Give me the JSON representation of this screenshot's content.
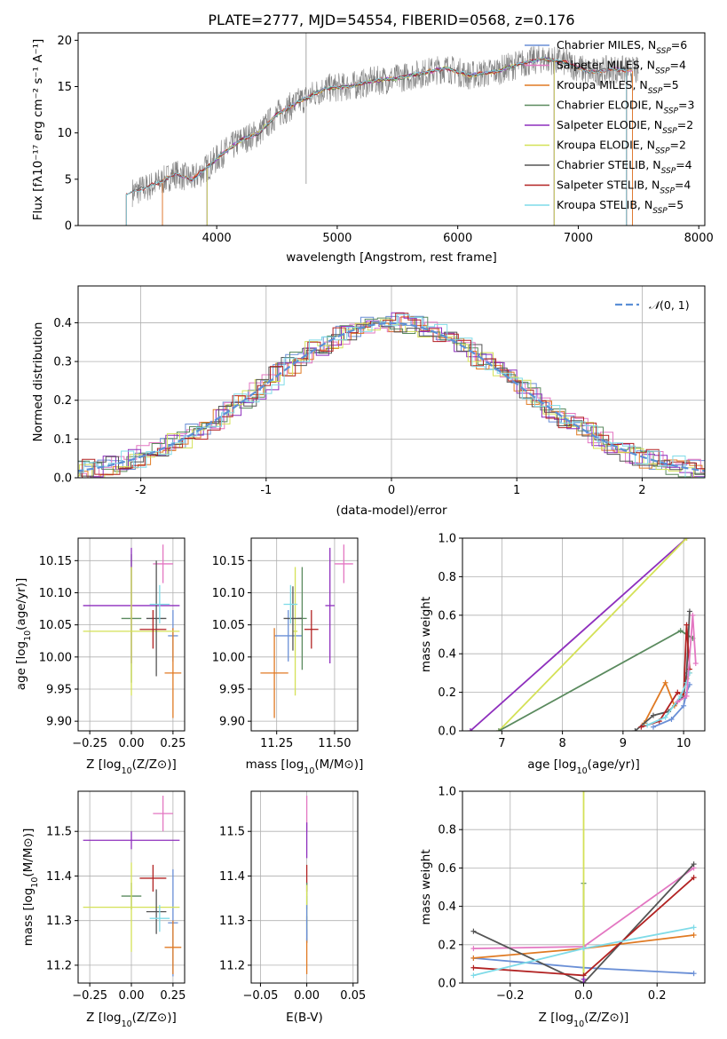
{
  "figure_title": "PLATE=2777, MJD=54554, FIBERID=0568, z=0.176",
  "colors": {
    "chabrier_miles": "#6a8fd6",
    "salpeter_miles": "#e377c2",
    "kroupa_miles": "#e07a23",
    "chabrier_elodie": "#5a8a5e",
    "salpeter_elodie": "#8e2fbd",
    "kroupa_elodie": "#d4e157",
    "chabrier_stelib": "#555555",
    "salpeter_stelib": "#b22222",
    "kroupa_stelib": "#7fdbe8",
    "data": "#808080",
    "normal": "#5b8fd6"
  },
  "chart_data": [
    {
      "id": "spectrum",
      "type": "line",
      "xlabel": "wavelength [Angstrom, rest frame]",
      "ylabel": "Flux [fλ10⁻¹⁷ erg cm⁻² s⁻¹ A⁻¹]",
      "xlim": [
        2850,
        8050
      ],
      "ylim": [
        0,
        20.8
      ],
      "xticks": [
        4000,
        5000,
        6000,
        7000,
        8000
      ],
      "yticks": [
        0,
        5,
        10,
        15,
        20
      ],
      "grid": false,
      "legend_position": "top-right",
      "continuum": {
        "x": [
          3250,
          3400,
          3550,
          3650,
          3800,
          3950,
          4050,
          4200,
          4350,
          4500,
          4700,
          4900,
          5100,
          5300,
          5500,
          5700,
          5900,
          6100,
          6300,
          6500,
          6700,
          6900,
          7100,
          7300,
          7500
        ],
        "y": [
          3.4,
          4.0,
          4.8,
          5.6,
          5.0,
          6.6,
          7.8,
          9.2,
          10.0,
          12.0,
          13.5,
          14.8,
          15.0,
          15.6,
          15.9,
          16.4,
          17.0,
          16.2,
          16.6,
          17.4,
          18.0,
          17.6,
          16.5,
          16.9,
          16.6
        ]
      },
      "series": [
        {
          "name": "Chabrier MILES, Nₛₛₚ=6",
          "name_main": "Chabrier MILES, N",
          "name_sub": "SSP",
          "name_tail": "=6",
          "color_key": "chabrier_miles",
          "xrange": [
            3550,
            7450
          ]
        },
        {
          "name": "Salpeter MILES, Nₛₛₚ=4",
          "name_main": "Salpeter MILES, N",
          "name_sub": "SSP",
          "name_tail": "=4",
          "color_key": "salpeter_miles",
          "xrange": [
            3550,
            7450
          ]
        },
        {
          "name": "Kroupa MILES, Nₛₛₚ=5",
          "name_main": "Kroupa MILES, N",
          "name_sub": "SSP",
          "name_tail": "=5",
          "color_key": "kroupa_miles",
          "xrange": [
            3550,
            7450
          ]
        },
        {
          "name": "Chabrier ELODIE, Nₛₛₚ=3",
          "name_main": "Chabrier ELODIE, N",
          "name_sub": "SSP",
          "name_tail": "=3",
          "color_key": "chabrier_elodie",
          "xrange": [
            3920,
            6800
          ]
        },
        {
          "name": "Salpeter ELODIE, Nₛₛₚ=2",
          "name_main": "Salpeter ELODIE, N",
          "name_sub": "SSP",
          "name_tail": "=2",
          "color_key": "salpeter_elodie",
          "xrange": [
            3920,
            6800
          ]
        },
        {
          "name": "Kroupa ELODIE, Nₛₛₚ=2",
          "name_main": "Kroupa ELODIE, N",
          "name_sub": "SSP",
          "name_tail": "=2",
          "color_key": "kroupa_elodie",
          "xrange": [
            3920,
            6800
          ]
        },
        {
          "name": "Chabrier STELIB, Nₛₛₚ=4",
          "name_main": "Chabrier STELIB, N",
          "name_sub": "SSP",
          "name_tail": "=4",
          "color_key": "chabrier_stelib",
          "xrange": [
            3250,
            7400
          ]
        },
        {
          "name": "Salpeter STELIB, Nₛₛₚ=4",
          "name_main": "Salpeter STELIB, N",
          "name_sub": "SSP",
          "name_tail": "=4",
          "color_key": "salpeter_stelib",
          "xrange": [
            3250,
            7400
          ]
        },
        {
          "name": "Kroupa STELIB, Nₛₛₚ=5",
          "name_main": "Kroupa STELIB, N",
          "name_sub": "SSP",
          "name_tail": "=5",
          "color_key": "kroupa_stelib",
          "xrange": [
            3250,
            7400
          ]
        }
      ]
    },
    {
      "id": "residual_hist",
      "type": "area",
      "xlabel": "(data-model)/error",
      "ylabel": "Normed distribution",
      "xlim": [
        -2.5,
        2.5
      ],
      "ylim": [
        0,
        0.495
      ],
      "xticks": [
        -2,
        -1,
        0,
        1,
        2
      ],
      "yticks": [
        0.0,
        0.1,
        0.2,
        0.3,
        0.4
      ],
      "grid": true,
      "legend_position": "top-right",
      "bin_width": 0.1,
      "reference": {
        "name_italic": "𝒩",
        "name_rest": "(0, 1)",
        "type": "gaussian",
        "mean": 0,
        "sigma": 1
      },
      "note": "9 step histograms, one per model, following the Gaussian reference"
    },
    {
      "id": "age_vs_Z",
      "type": "scatter",
      "xlabel_main": "Z [log",
      "xlabel_sub": "10",
      "xlabel_tail": "(Z/Z⊙)]",
      "ylabel_main": "age  [log",
      "ylabel_sub": "10",
      "ylabel_tail": "(age/yr)]",
      "xlim": [
        -0.32,
        0.32
      ],
      "ylim": [
        9.885,
        10.185
      ],
      "xticks": [
        -0.25,
        0.0,
        0.25
      ],
      "xticklabels": [
        "−0.25",
        "0.00",
        "0.25"
      ],
      "yticks": [
        9.9,
        9.95,
        10.0,
        10.05,
        10.1,
        10.15
      ],
      "yticklabels": [
        "9.90",
        "9.95",
        "10.00",
        "10.05",
        "10.10",
        "10.15"
      ],
      "grid": true,
      "points": [
        {
          "key": "chabrier_miles",
          "x": 0.25,
          "xerr": 0.03,
          "y": 10.033,
          "yerr": 0.04
        },
        {
          "key": "salpeter_miles",
          "x": 0.19,
          "xerr": 0.06,
          "y": 10.145,
          "yerr": 0.03
        },
        {
          "key": "kroupa_miles",
          "x": 0.25,
          "xerr": 0.05,
          "y": 9.975,
          "yerr": 0.07
        },
        {
          "key": "chabrier_elodie",
          "x": 0.0,
          "xerr": 0.06,
          "y": 10.06,
          "yerr": 0.1
        },
        {
          "key": "salpeter_elodie",
          "x": 0.0,
          "xerr": 0.29,
          "y": 10.08,
          "yerr": 0.09
        },
        {
          "key": "kroupa_elodie",
          "x": 0.0,
          "xerr": 0.29,
          "y": 10.04,
          "yerr": 0.1
        },
        {
          "key": "chabrier_stelib",
          "x": 0.15,
          "xerr": 0.06,
          "y": 10.06,
          "yerr": 0.09
        },
        {
          "key": "salpeter_stelib",
          "x": 0.13,
          "xerr": 0.08,
          "y": 10.043,
          "yerr": 0.03
        },
        {
          "key": "kroupa_stelib",
          "x": 0.17,
          "xerr": 0.06,
          "y": 10.082,
          "yerr": 0.03
        }
      ]
    },
    {
      "id": "age_vs_mass",
      "type": "scatter",
      "xlabel_main": "mass [log",
      "xlabel_sub": "10",
      "xlabel_tail": "(M/M⊙)]",
      "xlim": [
        11.14,
        11.6
      ],
      "ylim": [
        9.885,
        10.185
      ],
      "xticks": [
        11.25,
        11.5
      ],
      "xticklabels": [
        "11.25",
        "11.50"
      ],
      "yticks": [
        9.9,
        9.95,
        10.0,
        10.05,
        10.1,
        10.15
      ],
      "yticklabels": [
        "9.90",
        "9.95",
        "10.00",
        "10.05",
        "10.10",
        "10.15"
      ],
      "grid": true,
      "points": [
        {
          "key": "chabrier_miles",
          "x": 11.3,
          "xerr": 0.06,
          "y": 10.033,
          "yerr": 0.04
        },
        {
          "key": "salpeter_miles",
          "x": 11.54,
          "xerr": 0.04,
          "y": 10.145,
          "yerr": 0.03
        },
        {
          "key": "kroupa_miles",
          "x": 11.24,
          "xerr": 0.06,
          "y": 9.975,
          "yerr": 0.07
        },
        {
          "key": "chabrier_elodie",
          "x": 11.36,
          "xerr": 0.02,
          "y": 10.06,
          "yerr": 0.08
        },
        {
          "key": "salpeter_elodie",
          "x": 11.48,
          "xerr": 0.02,
          "y": 10.08,
          "yerr": 0.09
        },
        {
          "key": "kroupa_elodie",
          "x": 11.33,
          "xerr": 0.01,
          "y": 10.04,
          "yerr": 0.1
        },
        {
          "key": "chabrier_stelib",
          "x": 11.32,
          "xerr": 0.04,
          "y": 10.06,
          "yerr": 0.05
        },
        {
          "key": "salpeter_stelib",
          "x": 11.4,
          "xerr": 0.03,
          "y": 10.043,
          "yerr": 0.03
        },
        {
          "key": "kroupa_stelib",
          "x": 11.31,
          "xerr": 0.03,
          "y": 10.082,
          "yerr": 0.03
        }
      ]
    },
    {
      "id": "mass_weight_vs_age",
      "type": "line",
      "xlabel_main": "age  [log",
      "xlabel_sub": "10",
      "xlabel_tail": "(age/yr)]",
      "ylabel": "mass weight",
      "xlim": [
        6.35,
        10.35
      ],
      "ylim": [
        0,
        1
      ],
      "xticks": [
        7,
        8,
        9,
        10
      ],
      "yticks": [
        0.0,
        0.2,
        0.4,
        0.6,
        0.8,
        1.0
      ],
      "grid": true,
      "series": [
        {
          "key": "salpeter_elodie",
          "x": [
            6.48,
            10.05
          ],
          "y": [
            0.0,
            1.0
          ]
        },
        {
          "key": "kroupa_elodie",
          "x": [
            6.95,
            10.05
          ],
          "y": [
            0.0,
            1.0
          ]
        },
        {
          "key": "chabrier_elodie",
          "x": [
            6.95,
            9.95,
            10.15
          ],
          "y": [
            0.0,
            0.52,
            0.48
          ]
        },
        {
          "key": "kroupa_miles",
          "x": [
            9.35,
            9.7,
            9.85,
            10.0,
            10.05,
            10.1
          ],
          "y": [
            0.04,
            0.25,
            0.13,
            0.2,
            0.27,
            0.3
          ]
        },
        {
          "key": "chabrier_stelib",
          "x": [
            9.2,
            9.5,
            9.75,
            10.0,
            10.05,
            10.1
          ],
          "y": [
            0.0,
            0.08,
            0.1,
            0.18,
            0.3,
            0.62
          ]
        },
        {
          "key": "salpeter_stelib",
          "x": [
            9.3,
            9.6,
            9.9,
            10.0,
            10.05,
            10.1
          ],
          "y": [
            0.02,
            0.05,
            0.2,
            0.18,
            0.55,
            0.32
          ]
        },
        {
          "key": "kroupa_stelib",
          "x": [
            9.4,
            9.7,
            9.95,
            10.05,
            10.1
          ],
          "y": [
            0.03,
            0.07,
            0.18,
            0.25,
            0.3
          ]
        },
        {
          "key": "chabrier_miles",
          "x": [
            9.5,
            9.8,
            10.0,
            10.05,
            10.1
          ],
          "y": [
            0.02,
            0.06,
            0.13,
            0.2,
            0.24
          ]
        },
        {
          "key": "salpeter_miles",
          "x": [
            9.9,
            10.05,
            10.15,
            10.2
          ],
          "y": [
            0.15,
            0.18,
            0.6,
            0.35
          ]
        }
      ]
    },
    {
      "id": "mass_vs_Z",
      "type": "scatter",
      "xlabel_main": "Z [log",
      "xlabel_sub": "10",
      "xlabel_tail": "(Z/Z⊙)]",
      "ylabel_main": "mass [log",
      "ylabel_sub": "10",
      "ylabel_tail": "(M/M⊙)]",
      "xlim": [
        -0.32,
        0.32
      ],
      "ylim": [
        11.16,
        11.59
      ],
      "xticks": [
        -0.25,
        0.0,
        0.25
      ],
      "xticklabels": [
        "−0.25",
        "0.00",
        "0.25"
      ],
      "yticks": [
        11.2,
        11.3,
        11.4,
        11.5
      ],
      "yticklabels": [
        "11.2",
        "11.3",
        "11.4",
        "11.5"
      ],
      "grid": true,
      "points": [
        {
          "key": "chabrier_miles",
          "x": 0.25,
          "xerr": 0.03,
          "y": 11.295,
          "yerr": 0.12
        },
        {
          "key": "salpeter_miles",
          "x": 0.19,
          "xerr": 0.06,
          "y": 11.54,
          "yerr": 0.04
        },
        {
          "key": "kroupa_miles",
          "x": 0.25,
          "xerr": 0.05,
          "y": 11.24,
          "yerr": 0.06
        },
        {
          "key": "chabrier_elodie",
          "x": 0.0,
          "xerr": 0.06,
          "y": 11.355,
          "yerr": 0.03
        },
        {
          "key": "salpeter_elodie",
          "x": 0.0,
          "xerr": 0.29,
          "y": 11.48,
          "yerr": 0.02
        },
        {
          "key": "kroupa_elodie",
          "x": 0.0,
          "xerr": 0.29,
          "y": 11.33,
          "yerr": 0.1
        },
        {
          "key": "chabrier_stelib",
          "x": 0.15,
          "xerr": 0.06,
          "y": 11.32,
          "yerr": 0.05
        },
        {
          "key": "salpeter_stelib",
          "x": 0.13,
          "xerr": 0.08,
          "y": 11.395,
          "yerr": 0.03
        },
        {
          "key": "kroupa_stelib",
          "x": 0.17,
          "xerr": 0.06,
          "y": 11.305,
          "yerr": 0.03
        }
      ]
    },
    {
      "id": "mass_vs_ebv",
      "type": "scatter",
      "xlabel": "E(B-V)",
      "xlim": [
        -0.06,
        0.055
      ],
      "ylim": [
        11.16,
        11.59
      ],
      "xticks": [
        -0.05,
        0.0,
        0.05
      ],
      "xticklabels": [
        "−0.05",
        "0.00",
        "0.05"
      ],
      "yticks": [
        11.2,
        11.3,
        11.4,
        11.5
      ],
      "yticklabels": [
        "11.2",
        "11.3",
        "11.4",
        "11.5"
      ],
      "grid": true,
      "points": [
        {
          "key": "salpeter_miles",
          "x": 0.0,
          "xerr": 0.0,
          "y": 11.54,
          "yerr": 0.04
        },
        {
          "key": "salpeter_elodie",
          "x": 0.0,
          "xerr": 0.0,
          "y": 11.48,
          "yerr": 0.04
        },
        {
          "key": "salpeter_stelib",
          "x": 0.0,
          "xerr": 0.0,
          "y": 11.395,
          "yerr": 0.03
        },
        {
          "key": "kroupa_stelib",
          "x": 0.0,
          "xerr": 0.0,
          "y": 11.305,
          "yerr": 0.05
        },
        {
          "key": "chabrier_elodie",
          "x": 0.0,
          "xerr": 0.0,
          "y": 11.355,
          "yerr": 0.03
        },
        {
          "key": "chabrier_stelib",
          "x": 0.0,
          "xerr": 0.0,
          "y": 11.28,
          "yerr": 0.03
        },
        {
          "key": "kroupa_elodie",
          "x": 0.0,
          "xerr": 0.0,
          "y": 11.33,
          "yerr": 0.05
        },
        {
          "key": "kroupa_miles",
          "x": 0.0,
          "xerr": 0.0,
          "y": 11.22,
          "yerr": 0.04
        },
        {
          "key": "chabrier_miles",
          "x": 0.0,
          "xerr": 0.0,
          "y": 11.295,
          "yerr": 0.04
        }
      ]
    },
    {
      "id": "mass_weight_vs_Z",
      "type": "line",
      "xlabel_main": "Z [log",
      "xlabel_sub": "10",
      "xlabel_tail": "(Z/Z⊙)]",
      "ylabel": "mass weight",
      "xlim": [
        -0.33,
        0.33
      ],
      "ylim": [
        0,
        1
      ],
      "xticks": [
        -0.2,
        0.0,
        0.2
      ],
      "xticklabels": [
        "−0.2",
        "0.0",
        "0.2"
      ],
      "yticks": [
        0.0,
        0.2,
        0.4,
        0.6,
        0.8,
        1.0
      ],
      "grid": true,
      "series": [
        {
          "key": "chabrier_miles",
          "x": [
            -0.3,
            0.0,
            0.3
          ],
          "y": [
            0.13,
            0.08,
            0.05
          ]
        },
        {
          "key": "salpeter_miles",
          "x": [
            -0.3,
            0.0,
            0.3
          ],
          "y": [
            0.18,
            0.19,
            0.6
          ]
        },
        {
          "key": "kroupa_miles",
          "x": [
            -0.3,
            0.0,
            0.3
          ],
          "y": [
            0.13,
            0.18,
            0.25
          ]
        },
        {
          "key": "chabrier_elodie",
          "x": [
            0.0,
            0.0
          ],
          "y": [
            0.0,
            0.52
          ]
        },
        {
          "key": "kroupa_elodie",
          "x": [
            0.0,
            0.0
          ],
          "y": [
            0.0,
            1.0
          ]
        },
        {
          "key": "chabrier_stelib",
          "x": [
            -0.3,
            0.0,
            0.3
          ],
          "y": [
            0.27,
            0.0,
            0.62
          ]
        },
        {
          "key": "salpeter_stelib",
          "x": [
            -0.3,
            0.0,
            0.3
          ],
          "y": [
            0.08,
            0.04,
            0.55
          ]
        },
        {
          "key": "kroupa_stelib",
          "x": [
            -0.3,
            0.0,
            0.3
          ],
          "y": [
            0.04,
            0.18,
            0.29
          ]
        },
        {
          "key": "salpeter_elodie",
          "x": [
            0.0,
            0.0
          ],
          "y": [
            0.0,
            0.02
          ]
        }
      ]
    }
  ]
}
